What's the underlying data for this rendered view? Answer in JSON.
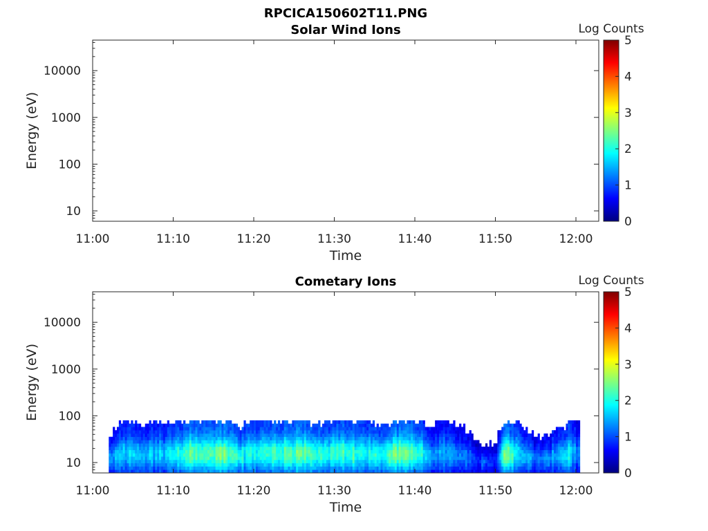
{
  "figure_title": "RPCICA150602T11.PNG",
  "colorbar_colors": [
    "#00007f",
    "#0000ff",
    "#007fff",
    "#00ffff",
    "#7fff7f",
    "#ffff00",
    "#ff7f00",
    "#ff0000",
    "#7f0000"
  ],
  "chart_data": [
    {
      "type": "heatmap",
      "title": "Solar Wind Ions",
      "xlabel": "Time",
      "ylabel": "Energy (eV)",
      "x_tick_labels": [
        "11:00",
        "11:10",
        "11:20",
        "11:30",
        "11:40",
        "11:50",
        "12:00"
      ],
      "y_scale": "log",
      "y_tick_labels": [
        "10",
        "100",
        "1000",
        "10000"
      ],
      "ylim": [
        6,
        45000
      ],
      "colorbar": {
        "label": "Log Counts",
        "range": [
          0,
          5
        ],
        "tick_labels": [
          "0",
          "1",
          "2",
          "3",
          "4",
          "5"
        ]
      },
      "data": "empty",
      "columns": []
    },
    {
      "type": "heatmap",
      "title": "Cometary Ions",
      "xlabel": "Time",
      "ylabel": "Energy (eV)",
      "x_tick_labels": [
        "11:00",
        "11:10",
        "11:20",
        "11:30",
        "11:40",
        "11:50",
        "12:00"
      ],
      "y_scale": "log",
      "y_tick_labels": [
        "10",
        "100",
        "1000",
        "10000"
      ],
      "ylim": [
        6,
        45000
      ],
      "colorbar": {
        "label": "Log Counts",
        "range": [
          0,
          5
        ],
        "tick_labels": [
          "0",
          "1",
          "2",
          "3",
          "4",
          "5"
        ]
      },
      "data_extent": {
        "time_start": "11:02",
        "time_end": "12:00",
        "energy_max_ev": 80
      },
      "columns": [
        {
          "time": "11:02",
          "top_ev": 35,
          "peak_log_counts": 1.4
        },
        {
          "time": "11:04",
          "top_ev": 80,
          "peak_log_counts": 1.6
        },
        {
          "time": "11:06",
          "top_ev": 60,
          "peak_log_counts": 1.7
        },
        {
          "time": "11:08",
          "top_ev": 80,
          "peak_log_counts": 1.6
        },
        {
          "time": "11:10",
          "top_ev": 70,
          "peak_log_counts": 1.8
        },
        {
          "time": "11:12",
          "top_ev": 80,
          "peak_log_counts": 2.4
        },
        {
          "time": "11:14",
          "top_ev": 80,
          "peak_log_counts": 2.3
        },
        {
          "time": "11:16",
          "top_ev": 80,
          "peak_log_counts": 2.5
        },
        {
          "time": "11:18",
          "top_ev": 55,
          "peak_log_counts": 2.0
        },
        {
          "time": "11:20",
          "top_ev": 80,
          "peak_log_counts": 1.9
        },
        {
          "time": "11:22",
          "top_ev": 80,
          "peak_log_counts": 2.2
        },
        {
          "time": "11:24",
          "top_ev": 80,
          "peak_log_counts": 2.2
        },
        {
          "time": "11:26",
          "top_ev": 80,
          "peak_log_counts": 2.5
        },
        {
          "time": "11:28",
          "top_ev": 60,
          "peak_log_counts": 2.1
        },
        {
          "time": "11:30",
          "top_ev": 80,
          "peak_log_counts": 2.0
        },
        {
          "time": "11:32",
          "top_ev": 80,
          "peak_log_counts": 2.2
        },
        {
          "time": "11:34",
          "top_ev": 80,
          "peak_log_counts": 1.9
        },
        {
          "time": "11:36",
          "top_ev": 55,
          "peak_log_counts": 2.1
        },
        {
          "time": "11:38",
          "top_ev": 80,
          "peak_log_counts": 2.5
        },
        {
          "time": "11:40",
          "top_ev": 80,
          "peak_log_counts": 2.2
        },
        {
          "time": "11:42",
          "top_ev": 60,
          "peak_log_counts": 1.5
        },
        {
          "time": "11:44",
          "top_ev": 80,
          "peak_log_counts": 1.4
        },
        {
          "time": "11:46",
          "top_ev": 50,
          "peak_log_counts": 1.3
        },
        {
          "time": "11:48",
          "top_ev": 20,
          "peak_log_counts": 0.9
        },
        {
          "time": "11:50",
          "top_ev": 25,
          "peak_log_counts": 1.0
        },
        {
          "time": "11:51",
          "top_ev": 80,
          "peak_log_counts": 2.6
        },
        {
          "time": "11:53",
          "top_ev": 60,
          "peak_log_counts": 1.6
        },
        {
          "time": "11:55",
          "top_ev": 30,
          "peak_log_counts": 1.3
        },
        {
          "time": "11:57",
          "top_ev": 40,
          "peak_log_counts": 1.5
        },
        {
          "time": "11:59",
          "top_ev": 60,
          "peak_log_counts": 2.0
        },
        {
          "time": "12:00",
          "top_ev": 80,
          "peak_log_counts": 1.2
        }
      ]
    }
  ]
}
